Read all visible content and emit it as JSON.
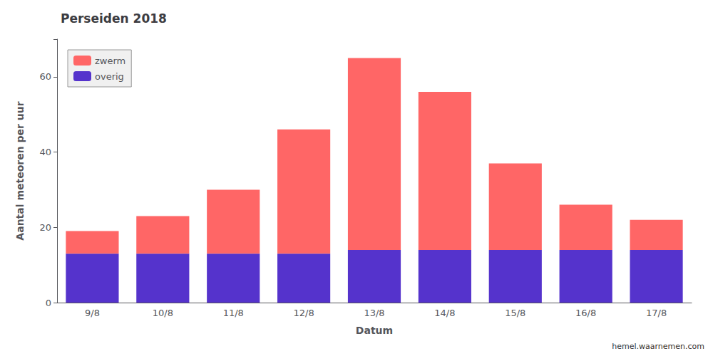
{
  "chart_data": {
    "type": "bar",
    "stacked": true,
    "title": "Perseiden 2018",
    "xlabel": "Datum",
    "ylabel": "Aantal meteoren per uur",
    "categories": [
      "9/8",
      "10/8",
      "11/8",
      "12/8",
      "13/8",
      "14/8",
      "15/8",
      "16/8",
      "17/8"
    ],
    "series": [
      {
        "name": "overig",
        "color": "#5533CC",
        "values": [
          13,
          13,
          13,
          13,
          14,
          14,
          14,
          14,
          14
        ]
      },
      {
        "name": "zwerm",
        "color": "#FF6666",
        "values": [
          6,
          10,
          17,
          33,
          51,
          42,
          23,
          12,
          8
        ]
      }
    ],
    "ylim": [
      0,
      70
    ],
    "yticks": [
      0,
      20,
      40,
      60
    ],
    "grid": false,
    "legend": "upper left",
    "annotation": "hemel.waarnemen.com"
  }
}
